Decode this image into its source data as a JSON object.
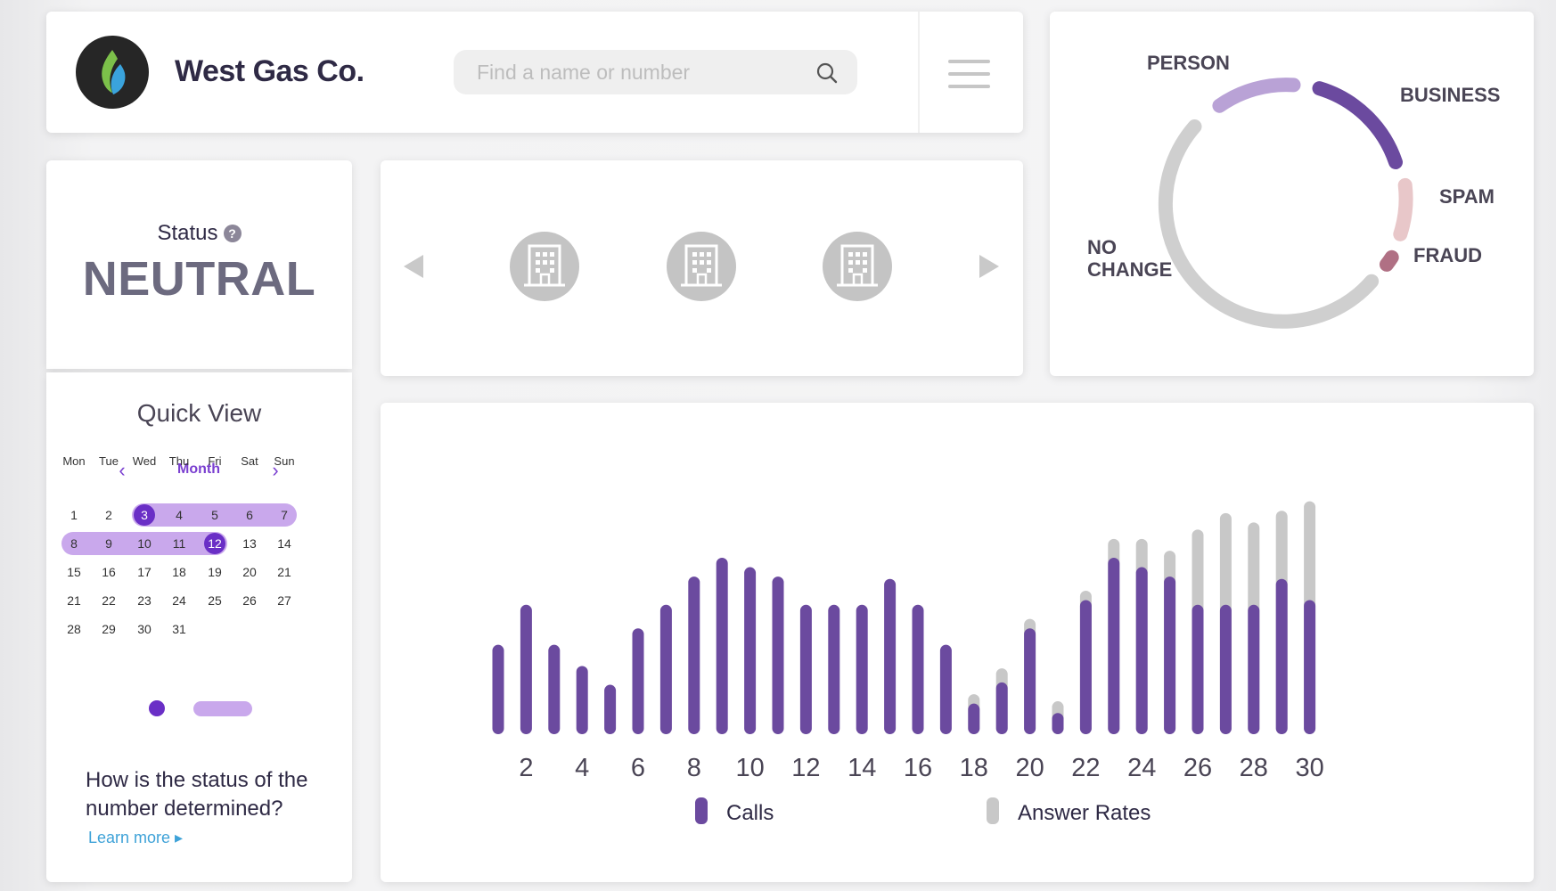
{
  "header": {
    "brand": "West Gas Co.",
    "search_placeholder": "Find a name or number",
    "search_icon": "search-icon",
    "menu_icon": "hamburger-menu-icon"
  },
  "status": {
    "label": "Status",
    "help_glyph": "?",
    "value": "NEUTRAL"
  },
  "quick_view": {
    "title": "Quick View",
    "prev_glyph": "‹",
    "next_glyph": "›",
    "period": "Month",
    "weekdays": [
      "Mon",
      "Tue",
      "Wed",
      "Thu",
      "Fri",
      "Sat",
      "Sun"
    ],
    "weeks": [
      [
        "1",
        "2",
        "3",
        "4",
        "5",
        "6",
        "7"
      ],
      [
        "8",
        "9",
        "10",
        "11",
        "12",
        "13",
        "14"
      ],
      [
        "15",
        "16",
        "17",
        "18",
        "19",
        "20",
        "21"
      ],
      [
        "21",
        "22",
        "23",
        "24",
        "25",
        "26",
        "27"
      ],
      [
        "28",
        "29",
        "30",
        "31",
        "",
        "",
        ""
      ]
    ],
    "range_start": "3",
    "range_end": "12",
    "faq": "How is the status of the number determined?",
    "learn_more": "Learn more ▸"
  },
  "carousel": {
    "icon": "building-icon",
    "items": 3
  },
  "colors": {
    "accent": "#6a2fc6",
    "bar_calls": "#6b4a9f",
    "bar_answer": "#c8c8c8",
    "range": "#c9a8ec"
  },
  "donut": {
    "segments": [
      {
        "label": "PERSON",
        "color": "#b9a2d6"
      },
      {
        "label": "BUSINESS",
        "color": "#6b4a9f"
      },
      {
        "label": "SPAM",
        "color": "#e8c7c9"
      },
      {
        "label": "FRAUD",
        "color": "#b07084"
      },
      {
        "label": "NO CHANGE",
        "color": "#cfcfcf"
      }
    ],
    "labels": {
      "person": "PERSON",
      "business": "BUSINESS",
      "spam": "SPAM",
      "fraud": "FRAUD",
      "no_change_1": "NO",
      "no_change_2": "CHANGE"
    }
  },
  "chart_data": {
    "type": "bar",
    "x": [
      1,
      2,
      3,
      4,
      5,
      6,
      7,
      8,
      9,
      10,
      11,
      12,
      13,
      14,
      15,
      16,
      17,
      18,
      19,
      20,
      21,
      22,
      23,
      24,
      25,
      26,
      27,
      28,
      29,
      30
    ],
    "tick_labels": [
      "2",
      "4",
      "6",
      "8",
      "10",
      "12",
      "14",
      "16",
      "18",
      "20",
      "22",
      "24",
      "26",
      "28",
      "30"
    ],
    "series": [
      {
        "name": "Calls",
        "values": [
          38,
          55,
          38,
          29,
          21,
          45,
          55,
          67,
          75,
          71,
          67,
          55,
          55,
          55,
          66,
          55,
          38,
          13,
          22,
          45,
          9,
          57,
          75,
          71,
          67,
          55,
          55,
          55,
          66,
          57
        ]
      },
      {
        "name": "Answer Rates",
        "values": [
          0,
          0,
          0,
          0,
          0,
          0,
          0,
          0,
          0,
          0,
          0,
          0,
          0,
          0,
          0,
          0,
          0,
          17,
          28,
          49,
          14,
          61,
          83,
          83,
          78,
          87,
          94,
          90,
          95,
          99
        ]
      }
    ],
    "xlabel": "",
    "ylabel": "",
    "legend": [
      "Calls",
      "Answer Rates"
    ],
    "legend_position": "bottom",
    "grid": false
  }
}
